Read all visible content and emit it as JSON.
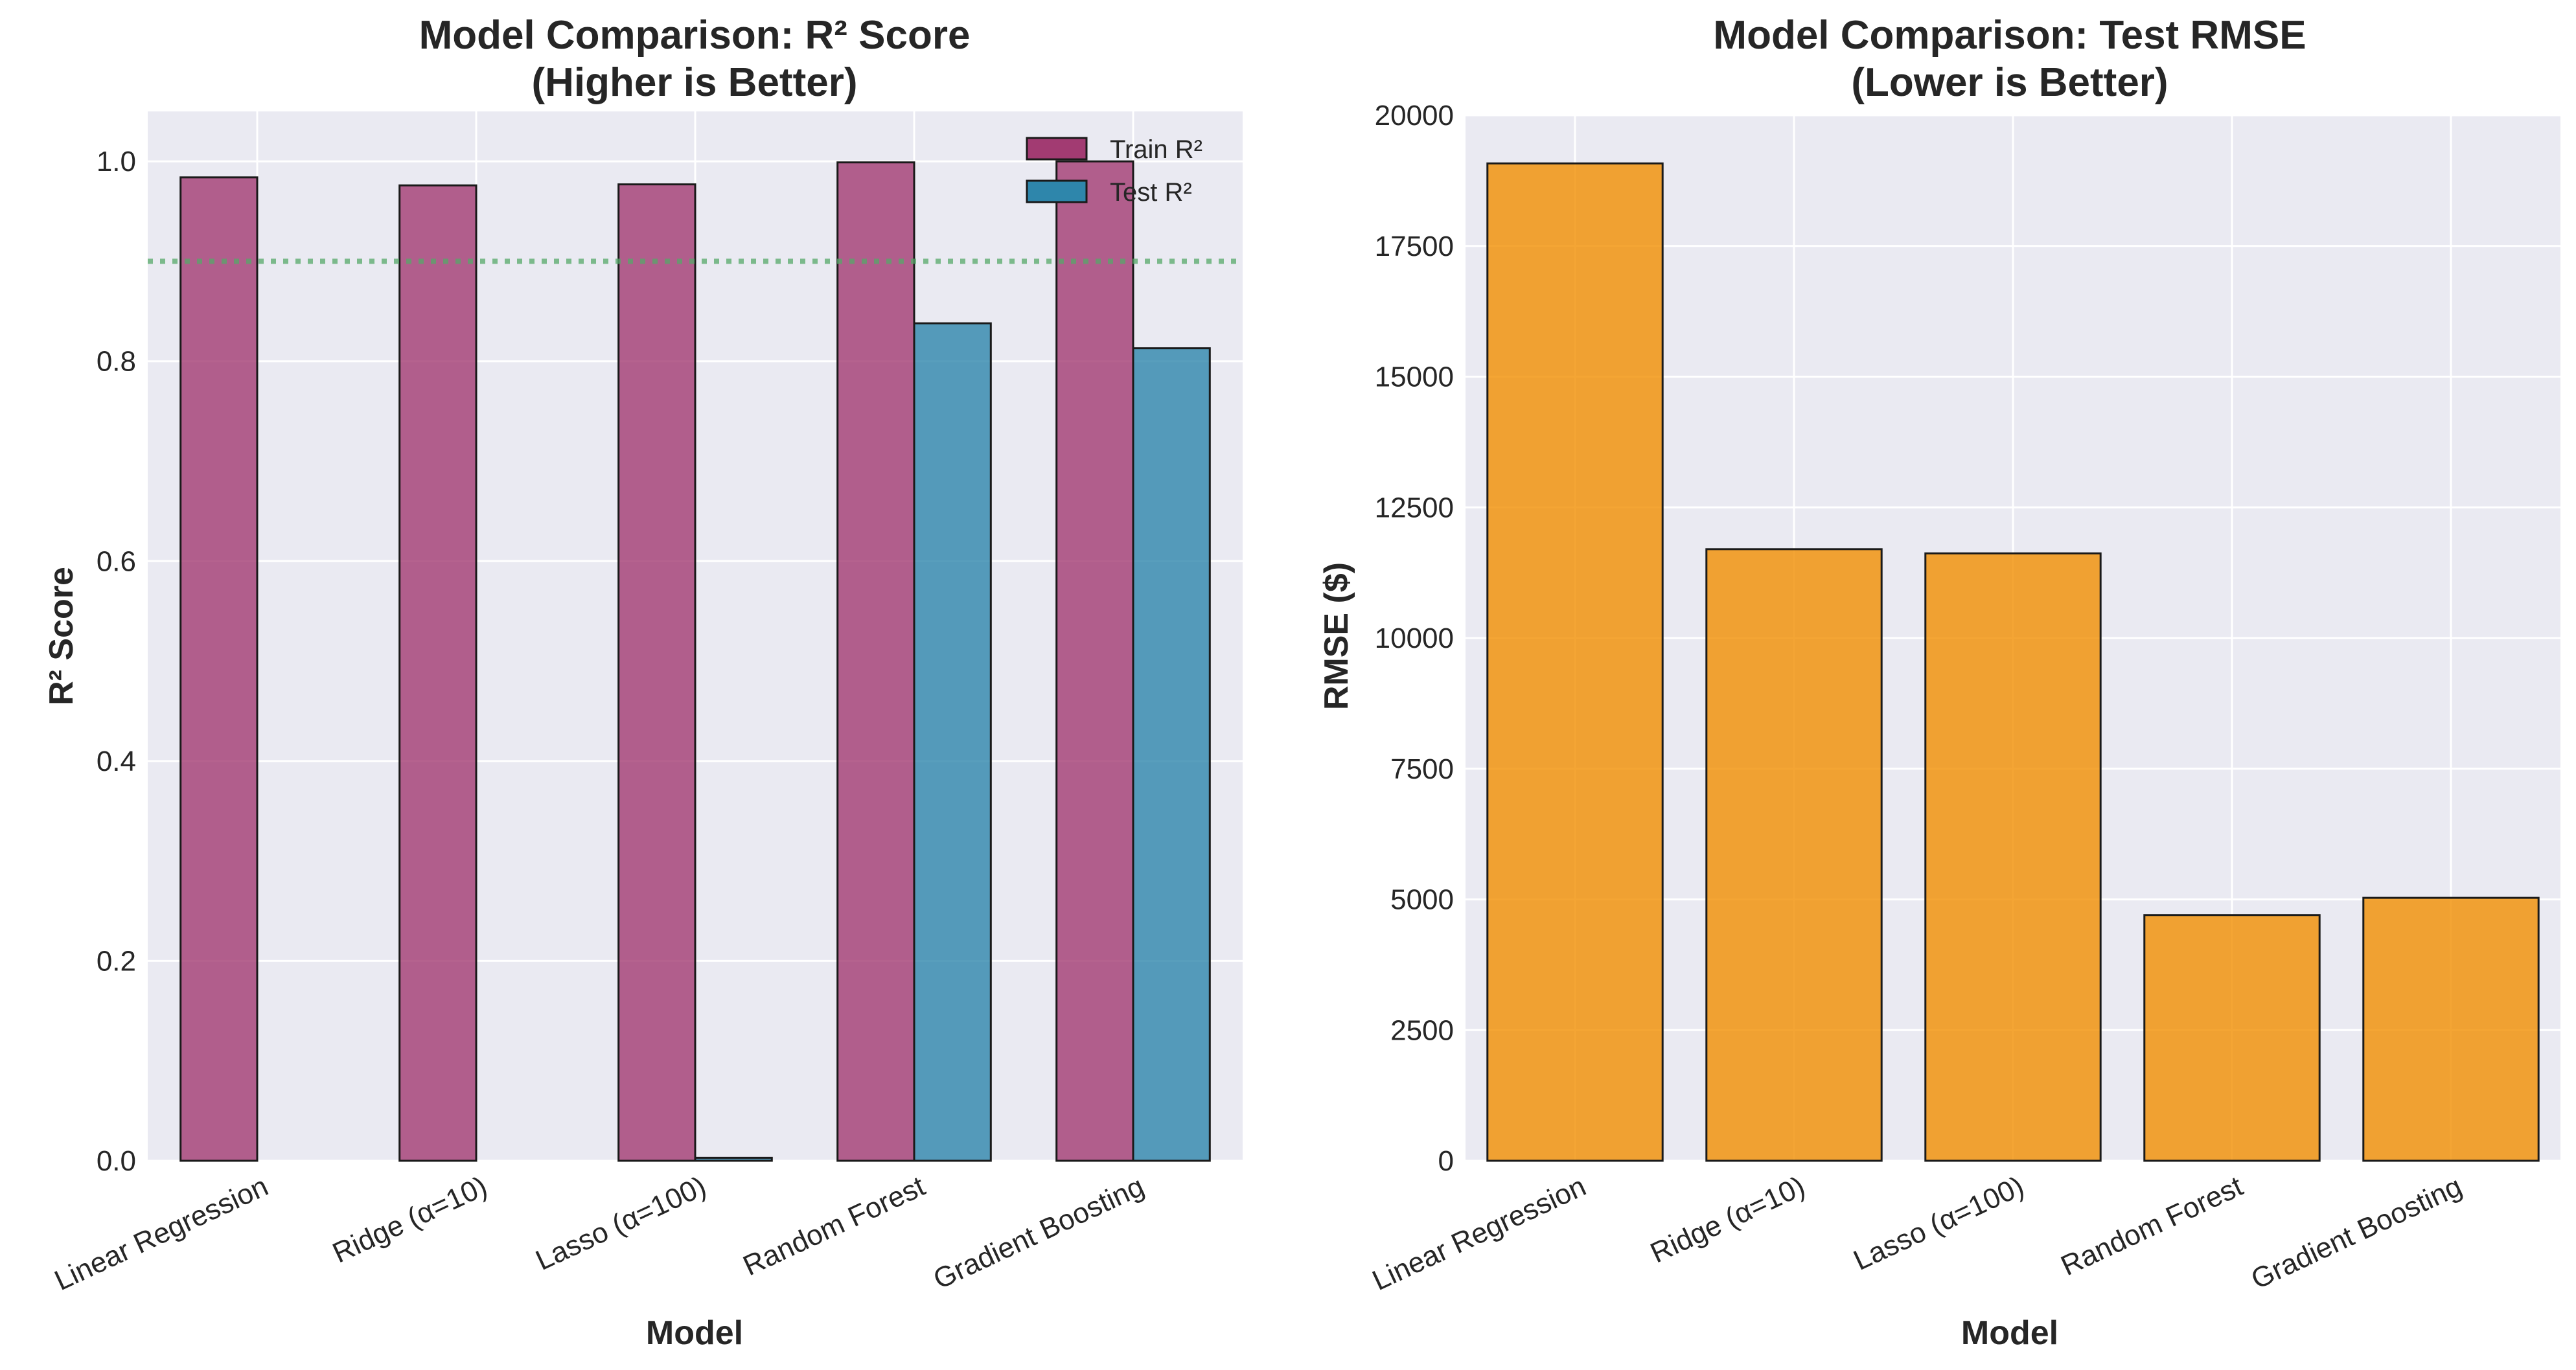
{
  "chart_data": [
    {
      "type": "bar",
      "title": "Model Comparison: R² Score",
      "subtitle": "(Higher is Better)",
      "xlabel": "Model",
      "ylabel": "R² Score",
      "categories": [
        "Linear Regression",
        "Ridge (α=10)",
        "Lasso (α=100)",
        "Random Forest",
        "Gradient Boosting"
      ],
      "series": [
        {
          "name": "Train R²",
          "values": [
            0.984,
            0.976,
            0.977,
            0.999,
            1.0
          ],
          "color": "#A23B72"
        },
        {
          "name": "Test R²",
          "values": [
            0.0,
            0.0,
            0.003,
            0.838,
            0.813
          ],
          "color": "#2E86AB"
        }
      ],
      "ylim": [
        0,
        1.05
      ],
      "yticks": [
        0.0,
        0.2,
        0.4,
        0.6,
        0.8,
        1.0
      ],
      "ytick_labels": [
        "0.0",
        "0.2",
        "0.4",
        "0.6",
        "0.8",
        "1.0"
      ],
      "reference_line": {
        "y": 0.9,
        "color": "#55A868",
        "style": "dotted"
      },
      "grid": true,
      "legend_position": "top-right"
    },
    {
      "type": "bar",
      "title": "Model Comparison: Test RMSE",
      "subtitle": "(Lower is Better)",
      "xlabel": "Model",
      "ylabel": "RMSE ($)",
      "categories": [
        "Linear Regression",
        "Ridge (α=10)",
        "Lasso (α=100)",
        "Random Forest",
        "Gradient Boosting"
      ],
      "values": [
        19080,
        11700,
        11620,
        4700,
        5030
      ],
      "color": "#F18F01",
      "ylim": [
        0,
        20000
      ],
      "yticks": [
        0,
        2500,
        5000,
        7500,
        10000,
        12500,
        15000,
        17500,
        20000
      ],
      "ytick_labels": [
        "0",
        "2500",
        "5000",
        "7500",
        "10000",
        "12500",
        "15000",
        "17500",
        "20000"
      ],
      "grid": true
    }
  ]
}
